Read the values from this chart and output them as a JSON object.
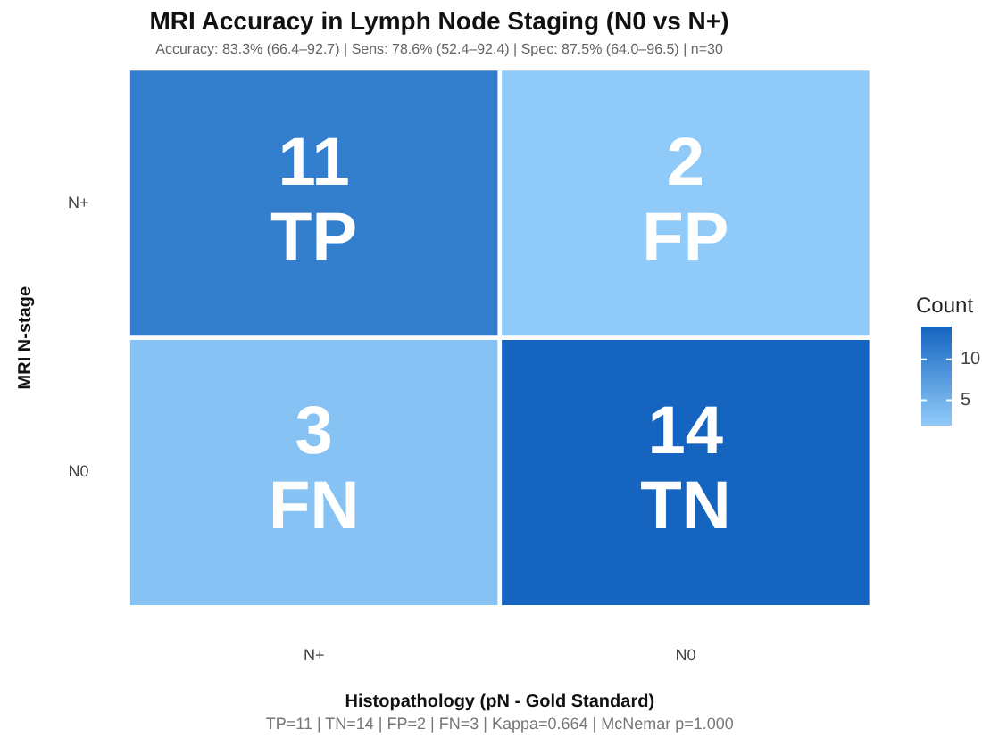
{
  "chart_data": {
    "type": "heatmap",
    "title": "MRI Accuracy in Lymph Node Staging (N0 vs N+)",
    "subtitle": "Accuracy: 83.3% (66.4–92.7) | Sens: 78.6% (52.4–92.4) | Spec: 87.5% (64.0–96.5) | n=30",
    "xlabel": "Histopathology (pN - Gold Standard)",
    "ylabel": "MRI N-stage",
    "clabel": "Count",
    "categories": [
      "N+",
      "N0"
    ],
    "y_categories": [
      "N+",
      "N0"
    ],
    "cells": [
      [
        11,
        2
      ],
      [
        3,
        14
      ]
    ],
    "cell_labels": [
      [
        "11\nTP",
        "2\nFP"
      ],
      [
        "3\nFN",
        "14\nTN"
      ]
    ],
    "clim": [
      2,
      14
    ],
    "cticks": [
      5,
      10
    ],
    "annotations": [
      "TP=11 | TN=14 | FP=2 | FN=3 | Kappa=0.664 | McNemar p=1.000"
    ]
  }
}
